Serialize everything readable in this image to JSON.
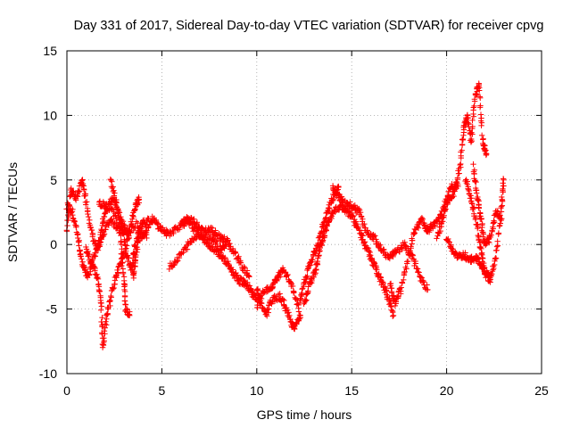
{
  "chart_data": {
    "type": "scatter",
    "title": "Day 331 of 2017, Sidereal Day-to-day VTEC variation (SDTVAR) for receiver cpvg",
    "xlabel": "GPS time / hours",
    "ylabel": "SDTVAR / TECUs",
    "xlim": [
      0,
      25
    ],
    "ylim": [
      -10,
      15
    ],
    "xticks": [
      0,
      5,
      10,
      15,
      20,
      25
    ],
    "yticks": [
      -10,
      -5,
      0,
      5,
      10,
      15
    ],
    "grid": true,
    "marker": "plus",
    "color": "#ff0000",
    "series": [
      {
        "name": "SDTVAR",
        "tracks": [
          [
            [
              0.0,
              1.0
            ],
            [
              0.2,
              4.2
            ],
            [
              0.5,
              3.6
            ],
            [
              0.8,
              5.0
            ],
            [
              1.0,
              3.5
            ],
            [
              1.3,
              1.0
            ],
            [
              1.6,
              -0.5
            ],
            [
              1.9,
              0.8
            ],
            [
              2.3,
              2.0
            ],
            [
              2.7,
              1.2
            ],
            [
              3.2,
              0.8
            ],
            [
              3.7,
              1.6
            ],
            [
              4.2,
              0.5
            ]
          ],
          [
            [
              0.0,
              3.0
            ],
            [
              0.3,
              2.5
            ],
            [
              0.6,
              0.5
            ],
            [
              0.8,
              -1.5
            ],
            [
              1.1,
              -2.5
            ],
            [
              1.4,
              -1.0
            ],
            [
              1.7,
              0.2
            ],
            [
              2.0,
              2.5
            ],
            [
              2.4,
              3.6
            ],
            [
              2.8,
              2.0
            ],
            [
              3.2,
              1.0
            ]
          ],
          [
            [
              1.0,
              -0.2
            ],
            [
              1.3,
              -1.5
            ],
            [
              1.6,
              -2.5
            ],
            [
              1.8,
              -4.5
            ],
            [
              1.9,
              -8.0
            ],
            [
              2.1,
              -5.5
            ],
            [
              2.4,
              -3.5
            ],
            [
              2.7,
              -2.0
            ],
            [
              3.0,
              -0.8
            ],
            [
              3.3,
              1.0
            ],
            [
              3.6,
              3.0
            ],
            [
              3.8,
              3.5
            ]
          ],
          [
            [
              2.3,
              5.0
            ],
            [
              2.6,
              3.2
            ],
            [
              2.9,
              1.5
            ],
            [
              3.1,
              -0.5
            ],
            [
              3.4,
              -2.0
            ],
            [
              3.6,
              0.0
            ],
            [
              3.9,
              1.5
            ],
            [
              4.3,
              2.0
            ]
          ],
          [
            [
              1.7,
              3.2
            ],
            [
              2.0,
              3.0
            ],
            [
              2.4,
              2.8
            ],
            [
              2.8,
              1.0
            ],
            [
              3.0,
              -2.5
            ],
            [
              3.1,
              -5.0
            ],
            [
              3.3,
              -5.5
            ]
          ],
          [
            [
              3.5,
              -2.5
            ],
            [
              3.6,
              -1.0
            ],
            [
              3.8,
              0.5
            ],
            [
              4.1,
              1.0
            ],
            [
              4.5,
              2.0
            ],
            [
              4.9,
              1.3
            ],
            [
              5.3,
              0.8
            ],
            [
              5.8,
              1.3
            ],
            [
              6.3,
              1.8
            ],
            [
              6.7,
              1.2
            ],
            [
              7.1,
              0.6
            ],
            [
              7.6,
              0.5
            ],
            [
              8.0,
              -0.3
            ],
            [
              8.4,
              0.0
            ]
          ],
          [
            [
              5.4,
              -1.8
            ],
            [
              5.9,
              -1.0
            ],
            [
              6.4,
              0.0
            ],
            [
              6.9,
              0.8
            ],
            [
              7.3,
              0.3
            ],
            [
              7.7,
              -0.3
            ],
            [
              8.1,
              -0.8
            ],
            [
              8.5,
              -1.6
            ],
            [
              8.8,
              -2.3
            ],
            [
              9.1,
              -2.8
            ],
            [
              9.4,
              -3.0
            ],
            [
              9.7,
              -3.6
            ],
            [
              10.0,
              -4.3
            ]
          ],
          [
            [
              6.0,
              1.5
            ],
            [
              6.4,
              2.0
            ],
            [
              6.8,
              1.6
            ],
            [
              7.2,
              1.0
            ],
            [
              7.6,
              1.1
            ],
            [
              8.0,
              0.6
            ],
            [
              8.4,
              0.3
            ],
            [
              8.8,
              -0.6
            ],
            [
              9.2,
              -1.6
            ],
            [
              9.6,
              -2.5
            ]
          ],
          [
            [
              10.0,
              -3.5
            ],
            [
              10.2,
              -4.5
            ],
            [
              10.5,
              -5.5
            ],
            [
              10.8,
              -4.3
            ],
            [
              11.2,
              -4.0
            ],
            [
              11.5,
              -4.8
            ],
            [
              11.8,
              -6.0
            ],
            [
              12.0,
              -6.5
            ],
            [
              12.3,
              -5.5
            ]
          ],
          [
            [
              10.0,
              -4.8
            ],
            [
              10.4,
              -3.5
            ],
            [
              10.8,
              -3.3
            ],
            [
              11.1,
              -2.5
            ],
            [
              11.4,
              -2.0
            ],
            [
              11.8,
              -3.0
            ],
            [
              12.2,
              -5.0
            ],
            [
              12.5,
              -3.0
            ],
            [
              12.8,
              -1.5
            ],
            [
              13.1,
              -0.5
            ],
            [
              13.4,
              1.0
            ],
            [
              13.7,
              2.5
            ],
            [
              14.0,
              3.5
            ],
            [
              14.3,
              4.5
            ]
          ],
          [
            [
              12.5,
              -4.5
            ],
            [
              12.8,
              -3.0
            ],
            [
              13.1,
              -2.0
            ],
            [
              13.3,
              -0.5
            ],
            [
              13.5,
              0.5
            ],
            [
              13.7,
              1.5
            ],
            [
              14.0,
              2.5
            ],
            [
              14.4,
              3.0
            ],
            [
              14.8,
              2.5
            ],
            [
              15.1,
              2.0
            ],
            [
              15.4,
              1.0
            ],
            [
              15.7,
              0.0
            ],
            [
              16.0,
              -1.0
            ],
            [
              16.3,
              -2.0
            ],
            [
              16.6,
              -3.0
            ],
            [
              16.9,
              -4.0
            ],
            [
              17.2,
              -5.5
            ]
          ],
          [
            [
              14.0,
              4.5
            ],
            [
              14.3,
              3.8
            ],
            [
              14.6,
              3.2
            ],
            [
              15.0,
              3.0
            ],
            [
              15.4,
              2.5
            ],
            [
              15.8,
              1.0
            ],
            [
              16.2,
              0.5
            ],
            [
              16.6,
              -0.5
            ],
            [
              17.0,
              -1.0
            ],
            [
              17.4,
              -0.5
            ],
            [
              17.8,
              0.0
            ],
            [
              18.2,
              -1.0
            ],
            [
              18.6,
              -2.5
            ],
            [
              19.0,
              -3.5
            ]
          ],
          [
            [
              17.0,
              -3.0
            ],
            [
              17.3,
              -4.5
            ],
            [
              17.6,
              -3.5
            ],
            [
              18.0,
              -1.0
            ],
            [
              18.3,
              1.0
            ],
            [
              18.7,
              2.0
            ],
            [
              19.0,
              1.0
            ],
            [
              19.3,
              1.5
            ],
            [
              19.6,
              2.0
            ],
            [
              19.9,
              3.0
            ],
            [
              20.2,
              4.5
            ],
            [
              20.6,
              4.5
            ]
          ],
          [
            [
              19.5,
              0.5
            ],
            [
              19.8,
              2.0
            ],
            [
              20.1,
              3.5
            ],
            [
              20.4,
              4.0
            ],
            [
              20.7,
              6.0
            ],
            [
              20.9,
              9.0
            ],
            [
              21.1,
              10.0
            ],
            [
              21.3,
              8.0
            ],
            [
              21.5,
              11.5
            ],
            [
              21.7,
              12.5
            ],
            [
              21.9,
              8.0
            ],
            [
              22.1,
              7.0
            ]
          ],
          [
            [
              20.0,
              0.5
            ],
            [
              20.3,
              -0.5
            ],
            [
              20.6,
              -1.0
            ],
            [
              20.9,
              -0.8
            ],
            [
              21.2,
              -1.2
            ],
            [
              21.5,
              -1.0
            ],
            [
              21.8,
              -1.5
            ],
            [
              22.1,
              -2.5
            ],
            [
              22.3,
              -2.7
            ]
          ],
          [
            [
              21.0,
              5.0
            ],
            [
              21.3,
              3.5
            ],
            [
              21.6,
              1.5
            ],
            [
              21.8,
              -0.5
            ],
            [
              22.0,
              -2.0
            ],
            [
              22.3,
              -2.5
            ],
            [
              22.6,
              -1.0
            ],
            [
              22.9,
              3.0
            ],
            [
              23.0,
              5.0
            ]
          ],
          [
            [
              21.4,
              6.0
            ],
            [
              21.6,
              4.0
            ],
            [
              21.8,
              2.0
            ],
            [
              22.0,
              0.0
            ],
            [
              22.3,
              0.5
            ],
            [
              22.6,
              2.5
            ],
            [
              22.9,
              2.0
            ]
          ]
        ]
      }
    ]
  }
}
